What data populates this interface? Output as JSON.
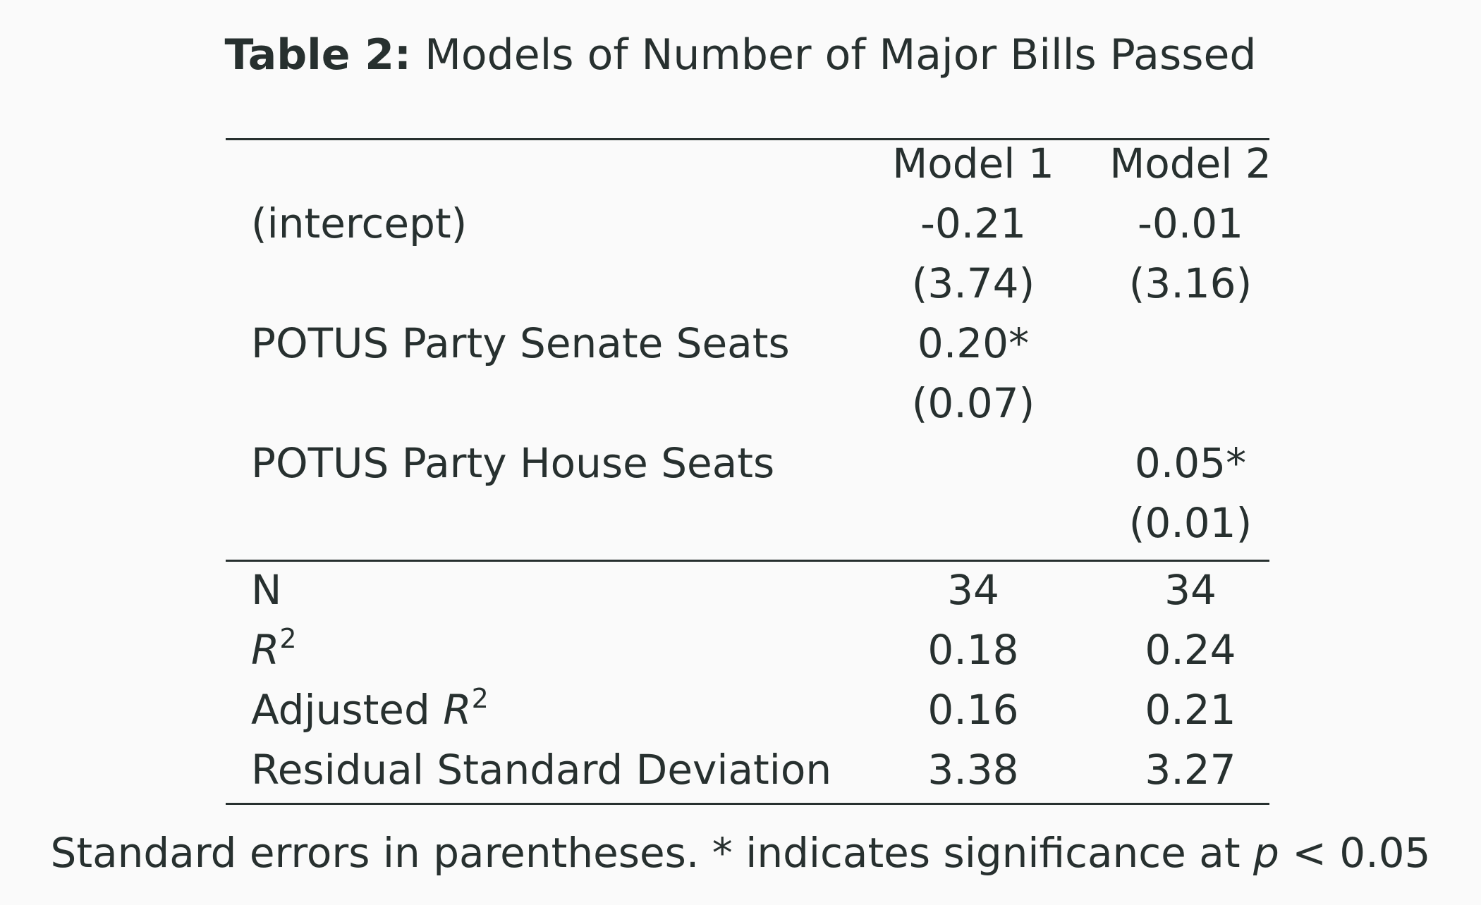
{
  "caption": {
    "label": "Table 2:",
    "title": "Models of Number of Major Bills Passed"
  },
  "table": {
    "columns": [
      "Model 1",
      "Model 2"
    ],
    "coefficients": [
      {
        "term": "(intercept)",
        "model1": "-0.21",
        "model2": "-0.01",
        "se1": "(3.74)",
        "se2": "(3.16)"
      },
      {
        "term": "POTUS Party Senate Seats",
        "model1": "0.20*",
        "model2": "",
        "se1": "(0.07)",
        "se2": ""
      },
      {
        "term": "POTUS Party House Seats",
        "model1": "",
        "model2": "0.05*",
        "se1": "",
        "se2": "(0.01)"
      }
    ],
    "stats": [
      {
        "term": "N",
        "model1": "34",
        "model2": "34"
      },
      {
        "term_symbol": "R",
        "term_sup": "2",
        "model1": "0.18",
        "model2": "0.24"
      },
      {
        "term_prefix": "Adjusted ",
        "term_symbol": "R",
        "term_sup": "2",
        "model1": "0.16",
        "model2": "0.21"
      },
      {
        "term": "Residual Standard Deviation",
        "model1": "3.38",
        "model2": "3.27"
      }
    ]
  },
  "note": {
    "text": "Standard errors in parentheses. * indicates significance at ",
    "p_symbol": "p",
    "comparison": " < 0.05"
  }
}
